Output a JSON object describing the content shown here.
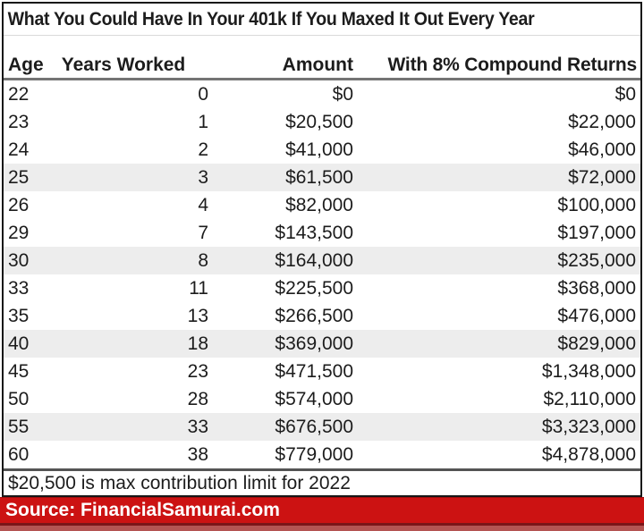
{
  "title": "What You Could Have In Your 401k If You Maxed It Out Every Year",
  "table": {
    "columns": [
      "Age",
      "Years Worked",
      "Amount",
      "With 8% Compound Returns"
    ],
    "rows": [
      [
        "22",
        "0",
        "$0",
        "$0"
      ],
      [
        "23",
        "1",
        "$20,500",
        "$22,000"
      ],
      [
        "24",
        "2",
        "$41,000",
        "$46,000"
      ],
      [
        "25",
        "3",
        "$61,500",
        "$72,000"
      ],
      [
        "26",
        "4",
        "$82,000",
        "$100,000"
      ],
      [
        "29",
        "7",
        "$143,500",
        "$197,000"
      ],
      [
        "30",
        "8",
        "$164,000",
        "$235,000"
      ],
      [
        "33",
        "11",
        "$225,500",
        "$368,000"
      ],
      [
        "35",
        "13",
        "$266,500",
        "$476,000"
      ],
      [
        "40",
        "18",
        "$369,000",
        "$829,000"
      ],
      [
        "45",
        "23",
        "$471,500",
        "$1,348,000"
      ],
      [
        "50",
        "28",
        "$574,000",
        "$2,110,000"
      ],
      [
        "55",
        "33",
        "$676,500",
        "$3,323,000"
      ],
      [
        "60",
        "38",
        "$779,000",
        "$4,878,000"
      ]
    ],
    "shaded_rows": [
      3,
      6,
      9,
      12
    ]
  },
  "footnote": "$20,500 is max contribution limit for 2022",
  "source": "Source: FinancialSamurai.com",
  "colors": {
    "banner_red": "#cc1212",
    "banner_dark_line": "#7b1518",
    "banner_muted_strip": "#b45452",
    "row_shade": "#ededed",
    "text": "#1c1c1c"
  },
  "chart_data": {
    "type": "table",
    "title": "What You Could Have In Your 401k If You Maxed It Out Every Year",
    "columns": [
      "Age",
      "Years Worked",
      "Amount",
      "With 8% Compound Returns"
    ],
    "rows": [
      [
        22,
        0,
        0,
        0
      ],
      [
        23,
        1,
        20500,
        22000
      ],
      [
        24,
        2,
        41000,
        46000
      ],
      [
        25,
        3,
        61500,
        72000
      ],
      [
        26,
        4,
        82000,
        100000
      ],
      [
        29,
        7,
        143500,
        197000
      ],
      [
        30,
        8,
        164000,
        235000
      ],
      [
        33,
        11,
        225500,
        368000
      ],
      [
        35,
        13,
        266500,
        476000
      ],
      [
        40,
        18,
        369000,
        829000
      ],
      [
        45,
        23,
        471500,
        1348000
      ],
      [
        50,
        28,
        574000,
        2110000
      ],
      [
        55,
        33,
        676500,
        3323000
      ],
      [
        60,
        38,
        779000,
        4878000
      ]
    ],
    "footnote": "$20,500 is max contribution limit for 2022",
    "source": "Source: FinancialSamurai.com"
  }
}
